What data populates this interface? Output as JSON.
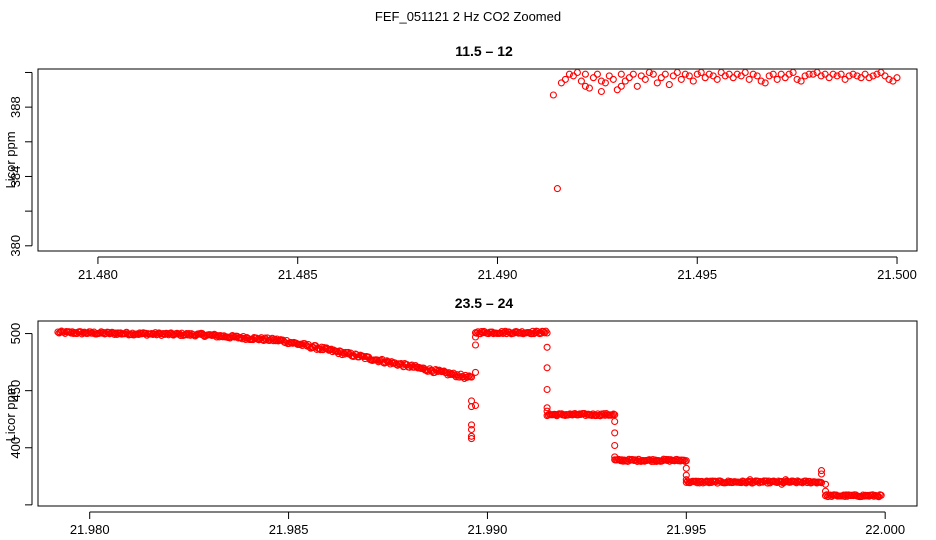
{
  "figure": {
    "title": "FEF_051121  2 Hz CO2 Zoomed"
  },
  "chart_data": [
    {
      "type": "scatter",
      "title": "11.5 – 12",
      "xlabel": "",
      "ylabel": "Licor ppm",
      "xlim": [
        21.4785,
        21.5005
      ],
      "ylim": [
        379.7,
        390.2
      ],
      "x_ticks": [
        21.48,
        21.485,
        21.49,
        21.495,
        21.5
      ],
      "x_tick_labels": [
        "21.480",
        "21.485",
        "21.490",
        "21.495",
        "21.500"
      ],
      "y_ticks": [
        380,
        382,
        384,
        386,
        388,
        390
      ],
      "y_tick_labels": [
        "380",
        "",
        "384",
        "",
        "388",
        ""
      ],
      "marker": "open-circle",
      "color": "#ff0000",
      "grid": false,
      "series": [
        {
          "points": [
            [
              21.4915,
              383.3
            ],
            [
              21.4914,
              388.7
            ],
            [
              21.4916,
              389.4
            ],
            [
              21.4917,
              389.6
            ],
            [
              21.4918,
              389.9
            ],
            [
              21.4919,
              389.8
            ],
            [
              21.492,
              390.0
            ],
            [
              21.4921,
              389.5
            ],
            [
              21.4922,
              389.9
            ],
            [
              21.4923,
              389.1
            ],
            [
              21.4924,
              389.7
            ],
            [
              21.4925,
              389.9
            ],
            [
              21.4926,
              388.9
            ],
            [
              21.4927,
              389.4
            ],
            [
              21.4928,
              389.8
            ],
            [
              21.4929,
              389.6
            ],
            [
              21.493,
              389.0
            ],
            [
              21.4931,
              389.9
            ],
            [
              21.4932,
              389.5
            ],
            [
              21.4933,
              389.7
            ],
            [
              21.4934,
              389.9
            ],
            [
              21.4935,
              389.2
            ],
            [
              21.4936,
              389.8
            ],
            [
              21.4937,
              389.6
            ],
            [
              21.4938,
              390.0
            ],
            [
              21.4939,
              389.9
            ],
            [
              21.494,
              389.4
            ],
            [
              21.4941,
              389.7
            ],
            [
              21.4942,
              389.9
            ],
            [
              21.4943,
              389.3
            ],
            [
              21.4944,
              389.8
            ],
            [
              21.4945,
              390.0
            ],
            [
              21.4946,
              389.6
            ],
            [
              21.4947,
              389.9
            ],
            [
              21.4948,
              389.8
            ],
            [
              21.4949,
              389.5
            ],
            [
              21.495,
              389.9
            ],
            [
              21.4951,
              390.0
            ],
            [
              21.4952,
              389.7
            ],
            [
              21.4953,
              389.9
            ],
            [
              21.4954,
              389.8
            ],
            [
              21.4955,
              389.6
            ],
            [
              21.4956,
              390.0
            ],
            [
              21.4957,
              389.8
            ],
            [
              21.4958,
              389.9
            ],
            [
              21.4959,
              389.7
            ],
            [
              21.496,
              389.9
            ],
            [
              21.4961,
              389.8
            ],
            [
              21.4962,
              390.0
            ],
            [
              21.4963,
              389.6
            ],
            [
              21.4964,
              389.9
            ],
            [
              21.4965,
              389.8
            ],
            [
              21.4966,
              389.5
            ],
            [
              21.4967,
              389.4
            ],
            [
              21.4968,
              389.8
            ],
            [
              21.4969,
              389.9
            ],
            [
              21.497,
              389.6
            ],
            [
              21.4971,
              389.9
            ],
            [
              21.4972,
              389.7
            ],
            [
              21.4973,
              389.9
            ],
            [
              21.4974,
              390.0
            ],
            [
              21.4975,
              389.6
            ],
            [
              21.4976,
              389.5
            ],
            [
              21.4977,
              389.8
            ],
            [
              21.4978,
              389.9
            ],
            [
              21.4979,
              389.9
            ],
            [
              21.498,
              390.0
            ],
            [
              21.4981,
              389.8
            ],
            [
              21.4982,
              389.9
            ],
            [
              21.4983,
              389.7
            ],
            [
              21.4984,
              389.9
            ],
            [
              21.4985,
              389.8
            ],
            [
              21.4986,
              389.9
            ],
            [
              21.4987,
              389.6
            ],
            [
              21.4988,
              389.8
            ],
            [
              21.4989,
              389.9
            ],
            [
              21.499,
              389.8
            ],
            [
              21.4991,
              389.7
            ],
            [
              21.4992,
              389.9
            ],
            [
              21.4993,
              389.7
            ],
            [
              21.4994,
              389.8
            ],
            [
              21.4995,
              389.9
            ],
            [
              21.4996,
              390.0
            ],
            [
              21.4997,
              389.8
            ],
            [
              21.4998,
              389.6
            ],
            [
              21.4999,
              389.5
            ],
            [
              21.5,
              389.7
            ],
            [
              21.4931,
              389.2
            ],
            [
              21.4926,
              389.5
            ],
            [
              21.4922,
              389.2
            ]
          ]
        }
      ]
    },
    {
      "type": "scatter",
      "title": "23.5 – 24",
      "xlabel": "",
      "ylabel": "Licor ppm",
      "xlim": [
        21.9787,
        22.0008
      ],
      "ylim": [
        349,
        511
      ],
      "x_ticks": [
        21.98,
        21.985,
        21.99,
        21.995,
        22.0
      ],
      "x_tick_labels": [
        "21.980",
        "21.985",
        "21.990",
        "21.995",
        "22.000"
      ],
      "y_ticks": [
        350,
        400,
        450,
        500
      ],
      "y_tick_labels": [
        "",
        "400",
        "450",
        "500"
      ],
      "marker": "open-circle",
      "color": "#ff0000",
      "grid": false,
      "segments": [
        {
          "x_start": 21.9792,
          "x_end": 21.9828,
          "y_start": 501,
          "y_end": 499,
          "noise": 1.2
        },
        {
          "x_start": 21.9828,
          "x_end": 21.9848,
          "y_start": 499,
          "y_end": 494,
          "noise": 1.4
        },
        {
          "x_start": 21.9848,
          "x_end": 21.9875,
          "y_start": 494,
          "y_end": 475,
          "noise": 1.6
        },
        {
          "x_start": 21.9875,
          "x_end": 21.9896,
          "y_start": 475,
          "y_end": 461,
          "noise": 1.6
        },
        {
          "x_start": 21.9897,
          "x_end": 21.9915,
          "y_start": 501,
          "y_end": 501,
          "noise": 1.2
        },
        {
          "x_start": 21.9915,
          "x_end": 21.9932,
          "y_start": 429,
          "y_end": 429,
          "noise": 1.0
        },
        {
          "x_start": 21.9932,
          "x_end": 21.995,
          "y_start": 389,
          "y_end": 389,
          "noise": 1.0
        },
        {
          "x_start": 21.995,
          "x_end": 21.9984,
          "y_start": 370,
          "y_end": 370,
          "noise": 1.0
        },
        {
          "x_start": 21.9985,
          "x_end": 21.9999,
          "y_start": 358,
          "y_end": 358,
          "noise": 0.9
        }
      ],
      "transition_points": [
        [
          21.9896,
          441
        ],
        [
          21.9896,
          436
        ],
        [
          21.9896,
          420
        ],
        [
          21.9896,
          416
        ],
        [
          21.9896,
          410
        ],
        [
          21.9896,
          408
        ],
        [
          21.9897,
          437
        ],
        [
          21.9897,
          466
        ],
        [
          21.9897,
          490
        ],
        [
          21.9897,
          497
        ],
        [
          21.9915,
          488
        ],
        [
          21.9915,
          470
        ],
        [
          21.9915,
          451
        ],
        [
          21.9915,
          435
        ],
        [
          21.9915,
          432
        ],
        [
          21.9932,
          423
        ],
        [
          21.9932,
          413
        ],
        [
          21.9932,
          402
        ],
        [
          21.9932,
          392
        ],
        [
          21.995,
          382
        ],
        [
          21.995,
          376
        ],
        [
          21.995,
          372
        ],
        [
          21.9984,
          380
        ],
        [
          21.9984,
          377
        ],
        [
          21.9985,
          368
        ],
        [
          21.9985,
          362
        ],
        [
          21.9966,
          372
        ],
        [
          21.9975,
          372
        ],
        [
          21.9974,
          368
        ]
      ]
    }
  ]
}
